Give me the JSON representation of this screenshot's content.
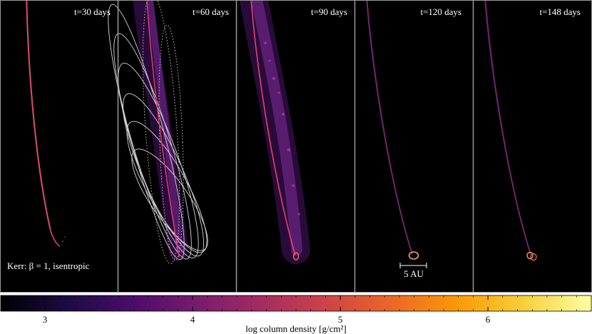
{
  "figure": {
    "panels": [
      {
        "label": "t=30 days"
      },
      {
        "label": "t=60 days"
      },
      {
        "label": "t=90 days"
      },
      {
        "label": "t=120 days"
      },
      {
        "label": "t=148 days"
      }
    ],
    "model_note": "Kerr: β = 1, isentropic",
    "scale_bar": "5 AU",
    "colorbar": {
      "title": "log column density [g/cm²]",
      "ticks": [
        "3",
        "4",
        "5",
        "6"
      ],
      "range": [
        2.7,
        6.7
      ],
      "colormap": "inferno",
      "colors": [
        "#000004",
        "#1b0c41",
        "#4a0c6b",
        "#781c6d",
        "#a52c60",
        "#cf4446",
        "#ed6925",
        "#fb9b06",
        "#f7d13d",
        "#fcffa4"
      ]
    },
    "colors": {
      "background": "#000000",
      "separator": "#9a9a9a",
      "stream": "#e8406a",
      "debris": "#6a1f8a",
      "orbit_lines": "#d8d8d8"
    }
  }
}
